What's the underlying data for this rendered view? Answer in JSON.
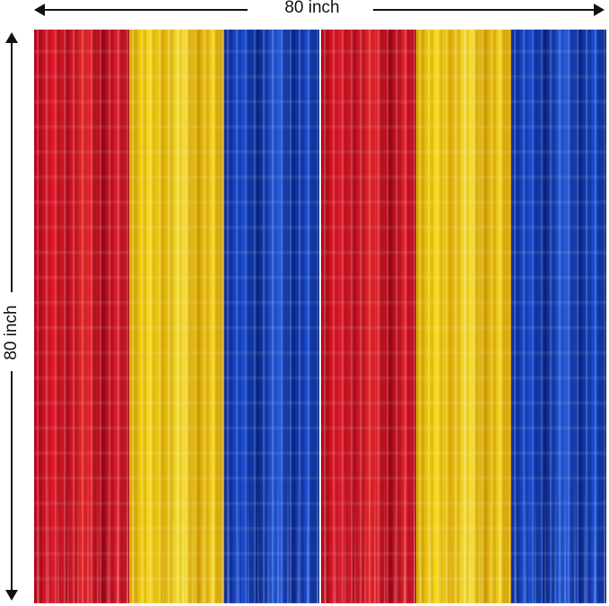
{
  "dimensions": {
    "width_label": "80 inch",
    "height_label": "80 inch"
  },
  "curtains": {
    "sets": [
      {
        "panels": [
          "red",
          "yellow",
          "blue"
        ]
      },
      {
        "panels": [
          "red",
          "yellow",
          "blue"
        ]
      }
    ],
    "colors": {
      "red": "#e31b2b",
      "yellow": "#f7d81a",
      "blue": "#1a4fd6"
    }
  }
}
